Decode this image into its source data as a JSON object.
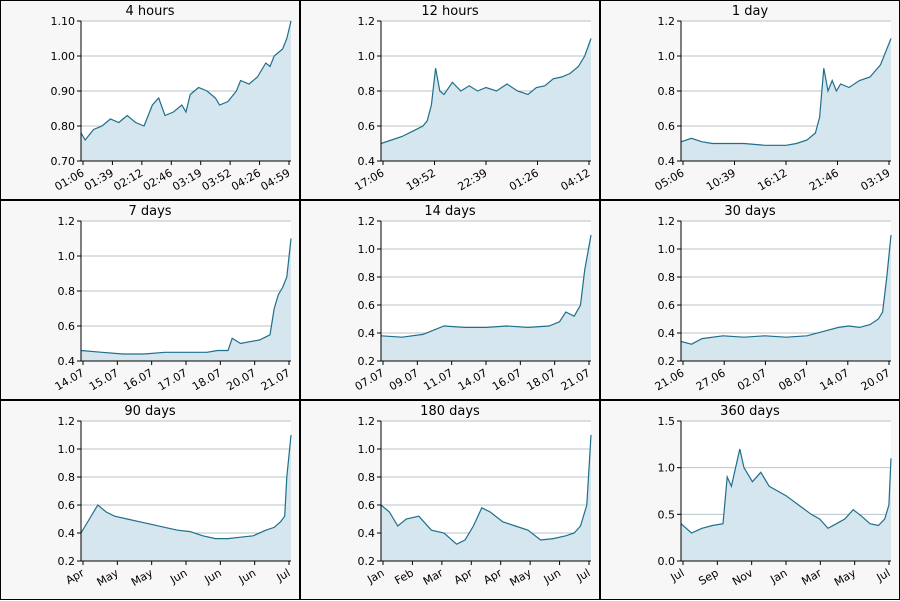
{
  "style": {
    "line_color": "#1f6f8b",
    "fill_color": "#d6e6ee",
    "grid_color": "#b9c4c9",
    "axis_color": "#000000"
  },
  "chart_data": [
    {
      "type": "area",
      "title": "4 hours",
      "x_tick_labels": [
        "01:06",
        "01:39",
        "02:12",
        "02:46",
        "03:19",
        "03:52",
        "04:26",
        "04:59"
      ],
      "y_ticks": [
        0.7,
        0.8,
        0.9,
        1.0,
        1.1
      ],
      "y_tick_labels": [
        "0.70",
        "0.80",
        "0.90",
        "1.00",
        "1.10"
      ],
      "ylim": [
        0.7,
        1.1
      ],
      "series": [
        {
          "x": [
            0,
            0.02,
            0.06,
            0.1,
            0.14,
            0.18,
            0.22,
            0.26,
            0.3,
            0.34,
            0.37,
            0.4,
            0.44,
            0.48,
            0.5,
            0.52,
            0.56,
            0.6,
            0.64,
            0.66,
            0.7,
            0.74,
            0.76,
            0.8,
            0.84,
            0.88,
            0.9,
            0.92,
            0.96,
            0.98,
            1.0
          ],
          "y": [
            0.78,
            0.76,
            0.79,
            0.8,
            0.82,
            0.81,
            0.83,
            0.81,
            0.8,
            0.86,
            0.88,
            0.83,
            0.84,
            0.86,
            0.84,
            0.89,
            0.91,
            0.9,
            0.88,
            0.86,
            0.87,
            0.9,
            0.93,
            0.92,
            0.94,
            0.98,
            0.97,
            1.0,
            1.02,
            1.05,
            1.1
          ]
        }
      ]
    },
    {
      "type": "area",
      "title": "12 hours",
      "x_tick_labels": [
        "17:06",
        "19:52",
        "22:39",
        "01:26",
        "04:12"
      ],
      "y_ticks": [
        0.4,
        0.6,
        0.8,
        1.0,
        1.2
      ],
      "y_tick_labels": [
        "0.4",
        "0.6",
        "0.8",
        "1.0",
        "1.2"
      ],
      "ylim": [
        0.4,
        1.2
      ],
      "series": [
        {
          "x": [
            0,
            0.05,
            0.1,
            0.15,
            0.2,
            0.22,
            0.24,
            0.26,
            0.28,
            0.3,
            0.34,
            0.38,
            0.42,
            0.46,
            0.5,
            0.55,
            0.6,
            0.65,
            0.7,
            0.74,
            0.78,
            0.82,
            0.86,
            0.9,
            0.94,
            0.97,
            1.0
          ],
          "y": [
            0.5,
            0.52,
            0.54,
            0.57,
            0.6,
            0.63,
            0.72,
            0.93,
            0.8,
            0.78,
            0.85,
            0.8,
            0.83,
            0.8,
            0.82,
            0.8,
            0.84,
            0.8,
            0.78,
            0.82,
            0.83,
            0.87,
            0.88,
            0.9,
            0.94,
            1.0,
            1.1
          ]
        }
      ]
    },
    {
      "type": "area",
      "title": "1 day",
      "x_tick_labels": [
        "05:06",
        "10:39",
        "16:12",
        "21:46",
        "03:19"
      ],
      "y_ticks": [
        0.4,
        0.6,
        0.8,
        1.0,
        1.2
      ],
      "y_tick_labels": [
        "0.4",
        "0.6",
        "0.8",
        "1.0",
        "1.2"
      ],
      "ylim": [
        0.4,
        1.2
      ],
      "series": [
        {
          "x": [
            0,
            0.05,
            0.1,
            0.15,
            0.2,
            0.3,
            0.4,
            0.5,
            0.55,
            0.6,
            0.64,
            0.66,
            0.68,
            0.7,
            0.72,
            0.74,
            0.76,
            0.8,
            0.85,
            0.9,
            0.95,
            1.0
          ],
          "y": [
            0.51,
            0.53,
            0.51,
            0.5,
            0.5,
            0.5,
            0.49,
            0.49,
            0.5,
            0.52,
            0.56,
            0.65,
            0.93,
            0.8,
            0.86,
            0.8,
            0.84,
            0.82,
            0.86,
            0.88,
            0.95,
            1.1
          ]
        }
      ]
    },
    {
      "type": "area",
      "title": "7 days",
      "x_tick_labels": [
        "14.07",
        "15.07",
        "16.07",
        "17.07",
        "18.07",
        "20.07",
        "21.07"
      ],
      "y_ticks": [
        0.4,
        0.6,
        0.8,
        1.0,
        1.2
      ],
      "y_tick_labels": [
        "0.4",
        "0.6",
        "0.8",
        "1.0",
        "1.2"
      ],
      "ylim": [
        0.4,
        1.2
      ],
      "series": [
        {
          "x": [
            0,
            0.1,
            0.2,
            0.3,
            0.4,
            0.5,
            0.6,
            0.65,
            0.7,
            0.72,
            0.76,
            0.8,
            0.85,
            0.9,
            0.92,
            0.94,
            0.96,
            0.98,
            1.0
          ],
          "y": [
            0.46,
            0.45,
            0.44,
            0.44,
            0.45,
            0.45,
            0.45,
            0.46,
            0.46,
            0.53,
            0.5,
            0.51,
            0.52,
            0.55,
            0.7,
            0.78,
            0.82,
            0.88,
            1.1
          ]
        }
      ]
    },
    {
      "type": "area",
      "title": "14 days",
      "x_tick_labels": [
        "07.07",
        "09.07",
        "11.07",
        "14.07",
        "16.07",
        "18.07",
        "21.07"
      ],
      "y_ticks": [
        0.2,
        0.4,
        0.6,
        0.8,
        1.0,
        1.2
      ],
      "y_tick_labels": [
        "0.2",
        "0.4",
        "0.6",
        "0.8",
        "1.0",
        "1.2"
      ],
      "ylim": [
        0.2,
        1.2
      ],
      "series": [
        {
          "x": [
            0,
            0.1,
            0.2,
            0.25,
            0.3,
            0.4,
            0.5,
            0.6,
            0.7,
            0.8,
            0.85,
            0.88,
            0.92,
            0.95,
            0.97,
            1.0
          ],
          "y": [
            0.38,
            0.37,
            0.39,
            0.42,
            0.45,
            0.44,
            0.44,
            0.45,
            0.44,
            0.45,
            0.48,
            0.55,
            0.52,
            0.6,
            0.85,
            1.1
          ]
        }
      ]
    },
    {
      "type": "area",
      "title": "30 days",
      "x_tick_labels": [
        "21.06",
        "27.06",
        "02.07",
        "08.07",
        "14.07",
        "20.07"
      ],
      "y_ticks": [
        0.2,
        0.4,
        0.6,
        0.8,
        1.0,
        1.2
      ],
      "y_tick_labels": [
        "0.2",
        "0.4",
        "0.6",
        "0.8",
        "1.0",
        "1.2"
      ],
      "ylim": [
        0.2,
        1.2
      ],
      "series": [
        {
          "x": [
            0,
            0.05,
            0.1,
            0.2,
            0.3,
            0.4,
            0.5,
            0.6,
            0.7,
            0.75,
            0.8,
            0.85,
            0.9,
            0.94,
            0.96,
            0.98,
            1.0
          ],
          "y": [
            0.34,
            0.32,
            0.36,
            0.38,
            0.37,
            0.38,
            0.37,
            0.38,
            0.42,
            0.44,
            0.45,
            0.44,
            0.46,
            0.5,
            0.55,
            0.8,
            1.1
          ]
        }
      ]
    },
    {
      "type": "area",
      "title": "90 days",
      "x_tick_labels": [
        "Apr",
        "May",
        "May",
        "Jun",
        "Jun",
        "Jun",
        "Jul"
      ],
      "y_ticks": [
        0.2,
        0.4,
        0.6,
        0.8,
        1.0,
        1.2
      ],
      "y_tick_labels": [
        "0.2",
        "0.4",
        "0.6",
        "0.8",
        "1.0",
        "1.2"
      ],
      "ylim": [
        0.2,
        1.2
      ],
      "series": [
        {
          "x": [
            0,
            0.04,
            0.08,
            0.12,
            0.16,
            0.22,
            0.28,
            0.34,
            0.4,
            0.46,
            0.52,
            0.58,
            0.64,
            0.7,
            0.76,
            0.82,
            0.88,
            0.92,
            0.95,
            0.97,
            0.98,
            1.0
          ],
          "y": [
            0.4,
            0.5,
            0.6,
            0.55,
            0.52,
            0.5,
            0.48,
            0.46,
            0.44,
            0.42,
            0.41,
            0.38,
            0.36,
            0.36,
            0.37,
            0.38,
            0.42,
            0.44,
            0.48,
            0.52,
            0.8,
            1.1
          ]
        }
      ]
    },
    {
      "type": "area",
      "title": "180 days",
      "x_tick_labels": [
        "Jan",
        "Feb",
        "Mar",
        "Apr",
        "Apr",
        "May",
        "Jun",
        "Jul"
      ],
      "y_ticks": [
        0.2,
        0.4,
        0.6,
        0.8,
        1.0,
        1.2
      ],
      "y_tick_labels": [
        "0.2",
        "0.4",
        "0.6",
        "0.8",
        "1.0",
        "1.2"
      ],
      "ylim": [
        0.2,
        1.2
      ],
      "series": [
        {
          "x": [
            0,
            0.04,
            0.08,
            0.12,
            0.18,
            0.24,
            0.3,
            0.36,
            0.4,
            0.44,
            0.48,
            0.52,
            0.58,
            0.64,
            0.7,
            0.76,
            0.82,
            0.88,
            0.92,
            0.95,
            0.98,
            1.0
          ],
          "y": [
            0.6,
            0.55,
            0.45,
            0.5,
            0.52,
            0.42,
            0.4,
            0.32,
            0.35,
            0.45,
            0.58,
            0.55,
            0.48,
            0.45,
            0.42,
            0.35,
            0.36,
            0.38,
            0.4,
            0.45,
            0.6,
            1.1
          ]
        }
      ]
    },
    {
      "type": "area",
      "title": "360 days",
      "x_tick_labels": [
        "Jul",
        "Sep",
        "Nov",
        "Jan",
        "Mar",
        "May",
        "Jul"
      ],
      "y_ticks": [
        0.0,
        0.5,
        1.0,
        1.5
      ],
      "y_tick_labels": [
        "0.0",
        "0.5",
        "1.0",
        "1.5"
      ],
      "ylim": [
        0.0,
        1.5
      ],
      "series": [
        {
          "x": [
            0,
            0.05,
            0.1,
            0.15,
            0.2,
            0.22,
            0.24,
            0.28,
            0.3,
            0.34,
            0.38,
            0.42,
            0.46,
            0.5,
            0.56,
            0.62,
            0.66,
            0.7,
            0.74,
            0.78,
            0.82,
            0.86,
            0.9,
            0.94,
            0.97,
            0.99,
            1.0
          ],
          "y": [
            0.4,
            0.3,
            0.35,
            0.38,
            0.4,
            0.9,
            0.8,
            1.2,
            1.0,
            0.85,
            0.95,
            0.8,
            0.75,
            0.7,
            0.6,
            0.5,
            0.45,
            0.35,
            0.4,
            0.45,
            0.55,
            0.48,
            0.4,
            0.38,
            0.45,
            0.6,
            1.1
          ]
        }
      ]
    }
  ]
}
